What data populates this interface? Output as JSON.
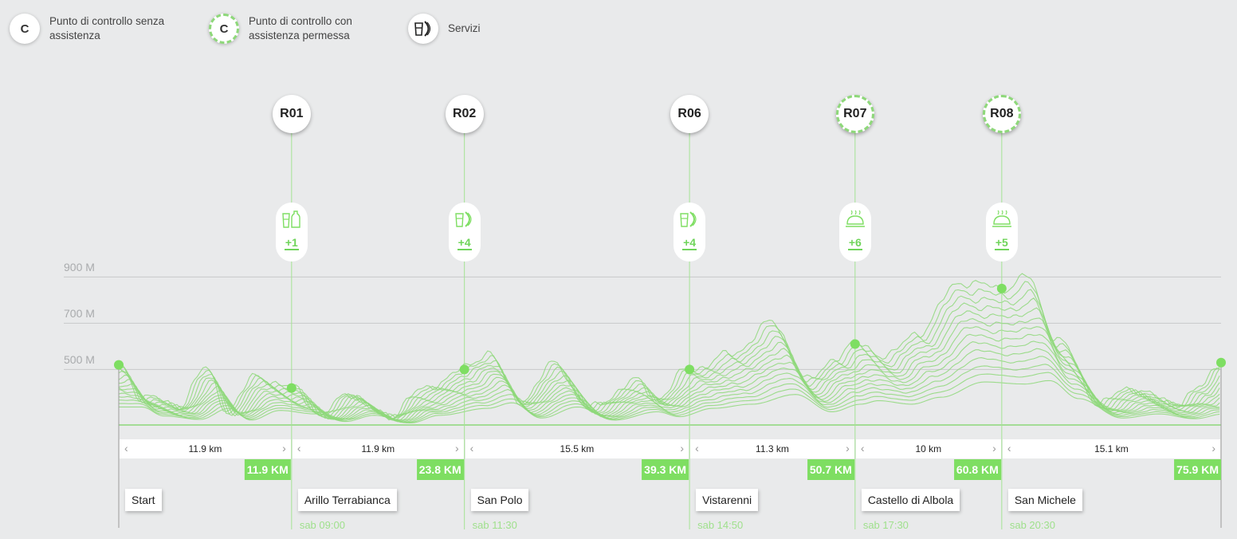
{
  "legend": [
    {
      "symbol": "C",
      "style": "solid",
      "text": "Punto di controllo senza assistenza"
    },
    {
      "symbol": "C",
      "style": "dashed",
      "text": "Punto di controllo con assistenza permessa"
    },
    {
      "symbol": "servizi-icon",
      "style": "solid",
      "text": "Servizi"
    }
  ],
  "colors": {
    "accent": "#7ede62",
    "line": "#8ed87a",
    "background": "#e9eaeb",
    "text_faint": "#a9abad"
  },
  "chart_data": {
    "type": "area",
    "ylabels": [
      "900 M",
      "700 M",
      "500 M"
    ],
    "yticks": [
      900,
      700,
      500
    ],
    "ylim": [
      260,
      980
    ],
    "xlim": [
      0,
      75.9
    ],
    "profile": {
      "km": [
        0,
        1.5,
        4,
        6,
        7.5,
        9.5,
        11.9,
        14,
        16,
        18.5,
        20.5,
        23.8,
        25.5,
        27.5,
        30,
        32.5,
        35.5,
        37,
        39.3,
        42,
        45,
        47.5,
        49.5,
        50.7,
        53,
        55,
        58,
        60.8,
        62.5,
        64.5,
        67.5,
        70,
        72.5,
        74.5,
        75.9
      ],
      "elevation": [
        520,
        390,
        340,
        500,
        330,
        470,
        420,
        310,
        400,
        290,
        400,
        500,
        580,
        360,
        520,
        330,
        450,
        380,
        500,
        560,
        700,
        450,
        560,
        610,
        560,
        660,
        880,
        850,
        900,
        640,
        360,
        420,
        350,
        420,
        530
      ]
    },
    "checkpoints": [
      {
        "id": "R01",
        "km": 11.9,
        "elevation": 420,
        "assisted": false,
        "service_icon": "water-bottles-icon",
        "service_count": "+1",
        "segment": "11.9 km",
        "km_label": "11.9 KM",
        "place": "Arillo Terrabianca",
        "time": "sab 09:00"
      },
      {
        "id": "R02",
        "km": 23.8,
        "elevation": 500,
        "assisted": false,
        "service_icon": "drink-food-icon",
        "service_count": "+4",
        "segment": "11.9 km",
        "km_label": "23.8 KM",
        "place": "San Polo",
        "time": "sab 11:30"
      },
      {
        "id": "R06",
        "km": 39.3,
        "elevation": 500,
        "assisted": false,
        "service_icon": "drink-food-icon",
        "service_count": "+4",
        "segment": "15.5 km",
        "km_label": "39.3 KM",
        "place": "Vistarenni",
        "time": "sab 14:50"
      },
      {
        "id": "R07",
        "km": 50.7,
        "elevation": 610,
        "assisted": true,
        "service_icon": "cloche-hot-meal-icon",
        "service_count": "+6",
        "segment": "11.3 km",
        "km_label": "50.7 KM",
        "place": "Castello di Albola",
        "time": "sab 17:30"
      },
      {
        "id": "R08",
        "km": 60.8,
        "elevation": 850,
        "assisted": true,
        "service_icon": "cloche-hot-meal-icon",
        "service_count": "+5",
        "segment": "10 km",
        "km_label": "60.8 KM",
        "place": "San Michele",
        "time": "sab 20:30"
      }
    ],
    "last_segment": "15.1 km",
    "finish_km_label": "75.9 KM",
    "start": {
      "place": "Start",
      "km": 0,
      "elevation": 520
    },
    "finish": {
      "km": 75.9,
      "elevation": 530
    }
  }
}
